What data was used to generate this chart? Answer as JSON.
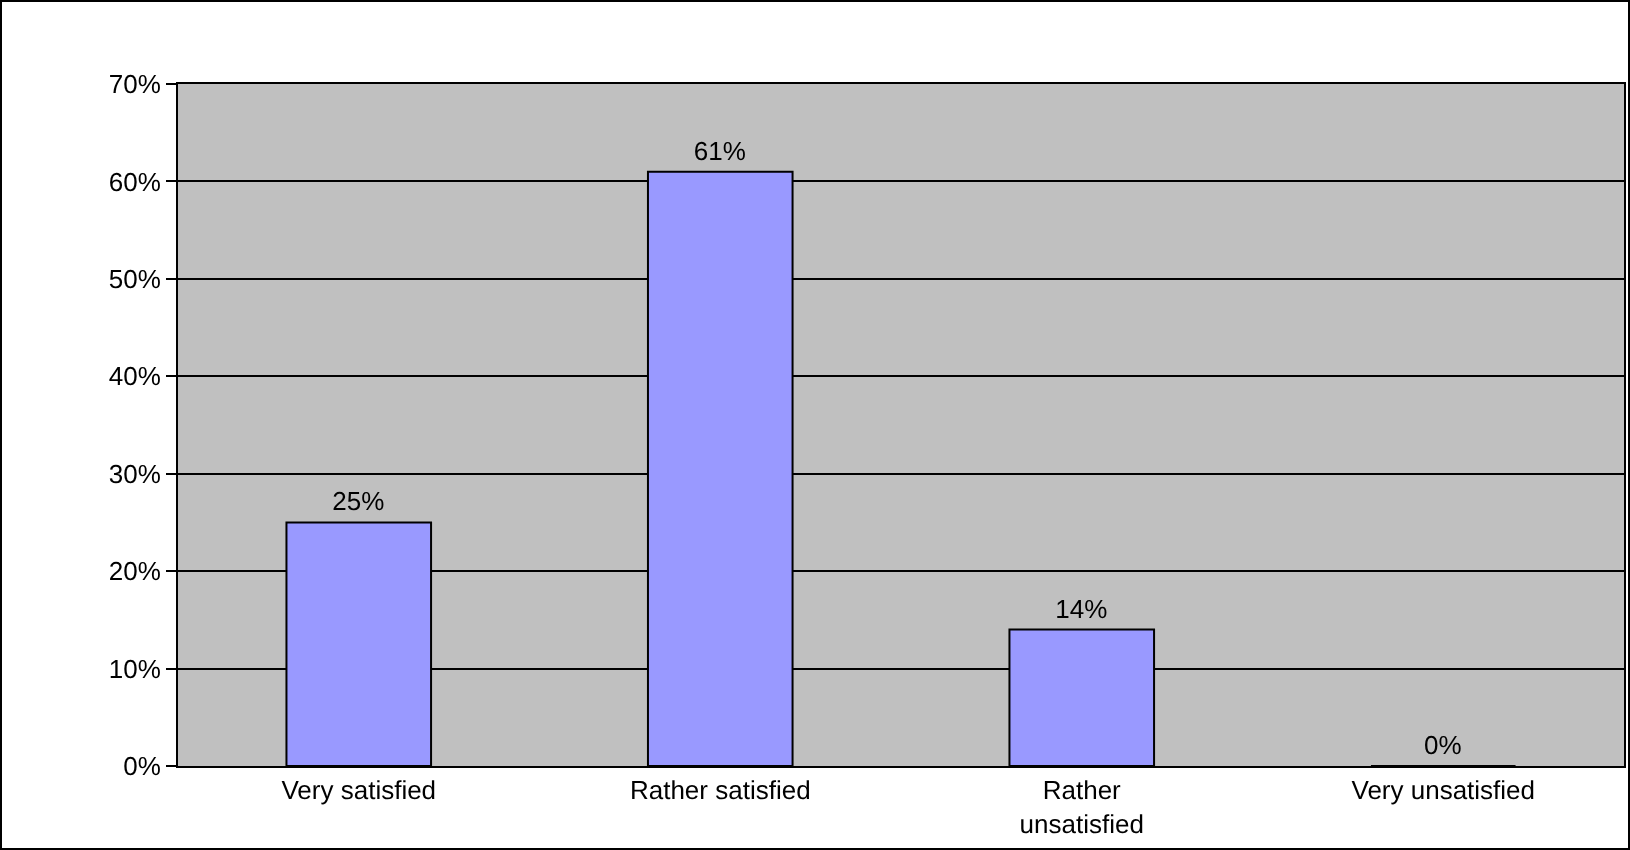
{
  "chart_data": {
    "type": "bar",
    "categories": [
      "Very satisfied",
      "Rather satisfied",
      "Rather unsatisfied",
      "Very unsatisfied"
    ],
    "values": [
      25,
      61,
      14,
      0
    ],
    "value_labels": [
      "25%",
      "61%",
      "14%",
      "0%"
    ],
    "color": "#9999ff",
    "ylim": [
      0,
      70
    ],
    "yticks": [
      {
        "value": 0,
        "label": "0%"
      },
      {
        "value": 10,
        "label": "10%"
      },
      {
        "value": 20,
        "label": "20%"
      },
      {
        "value": 30,
        "label": "30%"
      },
      {
        "value": 40,
        "label": "40%"
      },
      {
        "value": 50,
        "label": "50%"
      },
      {
        "value": 60,
        "label": "60%"
      },
      {
        "value": 70,
        "label": "70%"
      }
    ],
    "grid": "y"
  }
}
